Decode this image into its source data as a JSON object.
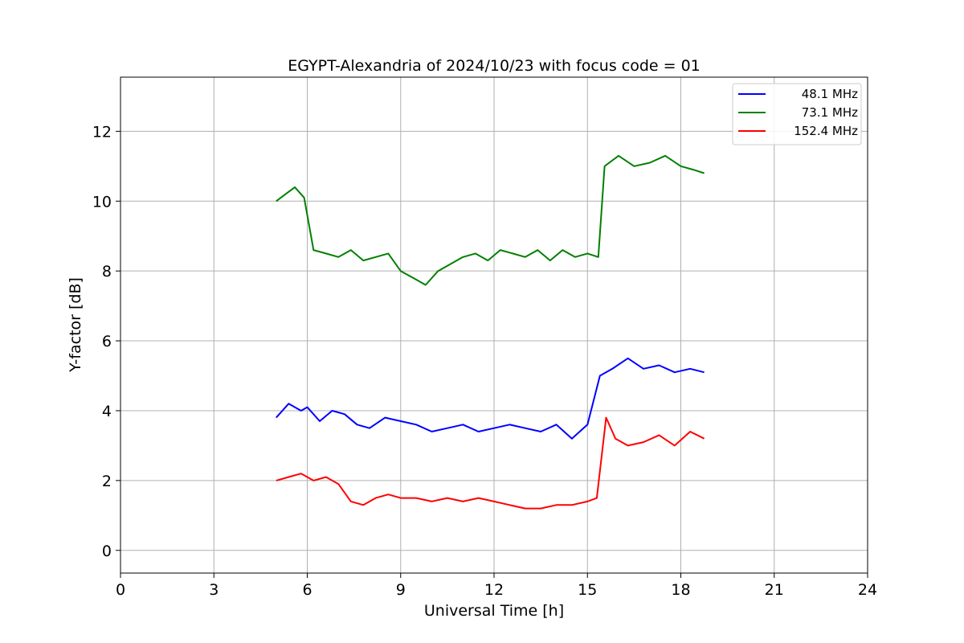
{
  "chart_data": {
    "type": "line",
    "title": "EGYPT-Alexandria of 2024/10/23 with focus code = 01",
    "xlabel": "Universal Time [h]",
    "ylabel": "Y-factor [dB]",
    "xlim": [
      0,
      24
    ],
    "ylim": [
      -0.65,
      13.55
    ],
    "xticks": [
      0,
      3,
      6,
      9,
      12,
      15,
      18,
      21,
      24
    ],
    "yticks": [
      0,
      2,
      4,
      6,
      8,
      10,
      12
    ],
    "grid": true,
    "legend_position": "top-right",
    "series": [
      {
        "name": "48.1 MHz",
        "color": "#0000ff",
        "x": [
          5.0,
          5.4,
          5.8,
          6.0,
          6.4,
          6.8,
          7.2,
          7.6,
          8.0,
          8.5,
          9.0,
          9.5,
          10.0,
          10.5,
          11.0,
          11.5,
          12.0,
          12.5,
          13.0,
          13.5,
          14.0,
          14.5,
          15.0,
          15.4,
          15.8,
          16.3,
          16.8,
          17.3,
          17.8,
          18.3,
          18.75
        ],
        "y": [
          3.8,
          4.2,
          4.0,
          4.1,
          3.7,
          4.0,
          3.9,
          3.6,
          3.5,
          3.8,
          3.7,
          3.6,
          3.4,
          3.5,
          3.6,
          3.4,
          3.5,
          3.6,
          3.5,
          3.4,
          3.6,
          3.2,
          3.6,
          5.0,
          5.2,
          5.5,
          5.2,
          5.3,
          5.1,
          5.2,
          5.1
        ]
      },
      {
        "name": "73.1 MHz",
        "color": "#008000",
        "x": [
          5.0,
          5.3,
          5.6,
          5.9,
          6.2,
          6.6,
          7.0,
          7.4,
          7.8,
          8.2,
          8.6,
          9.0,
          9.4,
          9.8,
          10.2,
          10.6,
          11.0,
          11.4,
          11.8,
          12.2,
          12.6,
          13.0,
          13.4,
          13.8,
          14.2,
          14.6,
          15.0,
          15.35,
          15.55,
          16.0,
          16.5,
          17.0,
          17.5,
          18.0,
          18.4,
          18.75
        ],
        "y": [
          10.0,
          10.2,
          10.4,
          10.1,
          8.6,
          8.5,
          8.4,
          8.6,
          8.3,
          8.4,
          8.5,
          8.0,
          7.8,
          7.6,
          8.0,
          8.2,
          8.4,
          8.5,
          8.3,
          8.6,
          8.5,
          8.4,
          8.6,
          8.3,
          8.6,
          8.4,
          8.5,
          8.4,
          11.0,
          11.3,
          11.0,
          11.1,
          11.3,
          11.0,
          10.9,
          10.8
        ]
      },
      {
        "name": "152.4 MHz",
        "color": "#ff0000",
        "x": [
          5.0,
          5.4,
          5.8,
          6.2,
          6.6,
          7.0,
          7.4,
          7.8,
          8.2,
          8.6,
          9.0,
          9.5,
          10.0,
          10.5,
          11.0,
          11.5,
          12.0,
          12.5,
          13.0,
          13.5,
          14.0,
          14.5,
          15.0,
          15.3,
          15.6,
          15.9,
          16.3,
          16.8,
          17.3,
          17.8,
          18.3,
          18.75
        ],
        "y": [
          2.0,
          2.1,
          2.2,
          2.0,
          2.1,
          1.9,
          1.4,
          1.3,
          1.5,
          1.6,
          1.5,
          1.5,
          1.4,
          1.5,
          1.4,
          1.5,
          1.4,
          1.3,
          1.2,
          1.2,
          1.3,
          1.3,
          1.4,
          1.5,
          3.8,
          3.2,
          3.0,
          3.1,
          3.3,
          3.0,
          3.4,
          3.2
        ]
      }
    ]
  }
}
